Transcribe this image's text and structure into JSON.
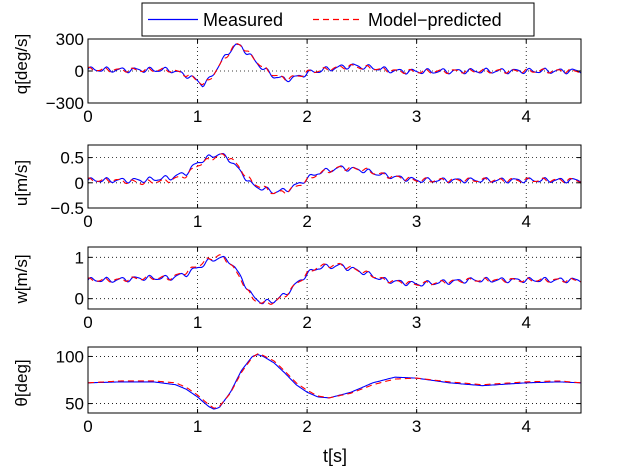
{
  "legend": {
    "entries": [
      {
        "label": "Measured",
        "color": "#0000ff",
        "dash": "solid"
      },
      {
        "label": "Model−predicted",
        "color": "#ff0000",
        "dash": "dashed"
      }
    ]
  },
  "xlabel": "t[s]",
  "chart_data": [
    {
      "type": "line",
      "ylabel": "q[deg/s]",
      "xlim": [
        0,
        4.5
      ],
      "ylim": [
        -300,
        300
      ],
      "xticks": [
        "0",
        "1",
        "2",
        "3",
        "4"
      ],
      "yticks": [
        "300",
        "0",
        "−300"
      ],
      "ytick_values": [
        300,
        0,
        -300
      ],
      "grid": true,
      "series": [
        {
          "name": "Measured",
          "x": [
            0,
            0.25,
            0.5,
            0.75,
            0.9,
            1.0,
            1.05,
            1.1,
            1.2,
            1.3,
            1.35,
            1.4,
            1.5,
            1.6,
            1.7,
            1.8,
            1.9,
            2.0,
            2.2,
            2.4,
            2.6,
            2.8,
            3.0,
            3.5,
            4.0,
            4.5
          ],
          "y": [
            15,
            10,
            10,
            10,
            -40,
            -90,
            -130,
            -90,
            60,
            200,
            240,
            230,
            120,
            20,
            -50,
            -80,
            -60,
            -20,
            20,
            50,
            30,
            0,
            -5,
            0,
            0,
            0
          ]
        },
        {
          "name": "Model−predicted",
          "x": [
            0,
            0.25,
            0.5,
            0.75,
            0.9,
            1.0,
            1.05,
            1.1,
            1.2,
            1.3,
            1.35,
            1.4,
            1.5,
            1.6,
            1.7,
            1.8,
            1.9,
            2.0,
            2.2,
            2.4,
            2.6,
            2.8,
            3.0,
            3.5,
            4.0,
            4.5
          ],
          "y": [
            15,
            10,
            10,
            10,
            -35,
            -85,
            -125,
            -95,
            50,
            190,
            250,
            240,
            130,
            30,
            -40,
            -70,
            -55,
            -15,
            20,
            45,
            25,
            0,
            -5,
            0,
            0,
            0
          ]
        }
      ]
    },
    {
      "type": "line",
      "ylabel": "u[m/s]",
      "xlim": [
        0,
        4.5
      ],
      "ylim": [
        -0.5,
        0.75
      ],
      "xticks": [
        "0",
        "1",
        "2",
        "3",
        "4"
      ],
      "yticks": [
        "0.5",
        "0",
        "−0.5"
      ],
      "ytick_values": [
        0.5,
        0,
        -0.5
      ],
      "grid": true,
      "series": [
        {
          "name": "Measured",
          "x": [
            0,
            0.25,
            0.5,
            0.75,
            0.9,
            1.0,
            1.1,
            1.2,
            1.3,
            1.4,
            1.5,
            1.6,
            1.7,
            1.8,
            1.9,
            2.0,
            2.1,
            2.3,
            2.5,
            2.7,
            3.0,
            3.5,
            4.0,
            4.5
          ],
          "y": [
            0.05,
            0.05,
            0.05,
            0.1,
            0.2,
            0.4,
            0.5,
            0.58,
            0.45,
            0.2,
            -0.05,
            -0.12,
            -0.18,
            -0.15,
            -0.05,
            0.08,
            0.2,
            0.3,
            0.25,
            0.15,
            0.05,
            0.05,
            0.05,
            0.05
          ]
        },
        {
          "name": "Model−predicted",
          "x": [
            0,
            0.25,
            0.5,
            0.75,
            0.9,
            1.0,
            1.1,
            1.2,
            1.3,
            1.4,
            1.5,
            1.6,
            1.7,
            1.8,
            1.9,
            2.0,
            2.1,
            2.3,
            2.5,
            2.7,
            3.0,
            3.5,
            4.0,
            4.5
          ],
          "y": [
            0.05,
            0.05,
            0.0,
            0.05,
            0.15,
            0.35,
            0.45,
            0.55,
            0.5,
            0.25,
            0.0,
            -0.1,
            -0.2,
            -0.18,
            -0.08,
            0.05,
            0.18,
            0.3,
            0.27,
            0.15,
            0.05,
            0.05,
            0.05,
            0.05
          ]
        }
      ]
    },
    {
      "type": "line",
      "ylabel": "w[m/s]",
      "xlim": [
        0,
        4.5
      ],
      "ylim": [
        -0.25,
        1.25
      ],
      "xticks": [
        "0",
        "1",
        "2",
        "3",
        "4"
      ],
      "yticks": [
        "1",
        "0"
      ],
      "ytick_values": [
        1,
        0
      ],
      "grid": true,
      "series": [
        {
          "name": "Measured",
          "x": [
            0,
            0.25,
            0.5,
            0.75,
            0.9,
            1.0,
            1.1,
            1.2,
            1.3,
            1.4,
            1.5,
            1.6,
            1.7,
            1.8,
            1.9,
            2.0,
            2.1,
            2.3,
            2.5,
            2.7,
            3.0,
            3.5,
            4.0,
            4.5
          ],
          "y": [
            0.45,
            0.45,
            0.5,
            0.5,
            0.6,
            0.75,
            0.9,
            1.0,
            0.9,
            0.5,
            0.05,
            -0.1,
            -0.05,
            0.1,
            0.35,
            0.6,
            0.75,
            0.8,
            0.65,
            0.45,
            0.35,
            0.45,
            0.45,
            0.45
          ]
        },
        {
          "name": "Model−predicted",
          "x": [
            0,
            0.25,
            0.5,
            0.75,
            0.9,
            1.0,
            1.1,
            1.2,
            1.3,
            1.4,
            1.5,
            1.6,
            1.7,
            1.8,
            1.9,
            2.0,
            2.1,
            2.3,
            2.5,
            2.7,
            3.0,
            3.5,
            4.0,
            4.5
          ],
          "y": [
            0.45,
            0.45,
            0.5,
            0.5,
            0.65,
            0.8,
            0.95,
            1.05,
            0.85,
            0.45,
            0.0,
            -0.12,
            -0.08,
            0.08,
            0.35,
            0.6,
            0.78,
            0.82,
            0.66,
            0.45,
            0.35,
            0.45,
            0.45,
            0.45
          ]
        }
      ]
    },
    {
      "type": "line",
      "ylabel": "θ[deg]",
      "xlim": [
        0,
        4.5
      ],
      "ylim": [
        40,
        110
      ],
      "xticks": [
        "0",
        "1",
        "2",
        "3",
        "4"
      ],
      "yticks": [
        "100",
        "50"
      ],
      "ytick_values": [
        100,
        50
      ],
      "grid": true,
      "series": [
        {
          "name": "Measured",
          "x": [
            0,
            0.3,
            0.6,
            0.8,
            0.9,
            1.0,
            1.1,
            1.15,
            1.2,
            1.3,
            1.4,
            1.5,
            1.55,
            1.6,
            1.7,
            1.8,
            1.9,
            2.0,
            2.1,
            2.2,
            2.4,
            2.6,
            2.8,
            3.0,
            3.3,
            3.6,
            4.0,
            4.3,
            4.5
          ],
          "y": [
            72,
            73,
            73,
            70,
            65,
            57,
            47,
            44,
            46,
            62,
            85,
            100,
            102,
            100,
            93,
            82,
            70,
            62,
            57,
            56,
            62,
            72,
            78,
            77,
            72,
            69,
            72,
            73,
            72
          ]
        },
        {
          "name": "Model−predicted",
          "x": [
            0,
            0.3,
            0.6,
            0.8,
            0.9,
            1.0,
            1.1,
            1.15,
            1.2,
            1.3,
            1.4,
            1.5,
            1.55,
            1.6,
            1.7,
            1.8,
            1.9,
            2.0,
            2.1,
            2.2,
            2.4,
            2.6,
            2.8,
            3.0,
            3.3,
            3.6,
            4.0,
            4.3,
            4.5
          ],
          "y": [
            72,
            74,
            74,
            72,
            67,
            59,
            49,
            45,
            47,
            61,
            83,
            99,
            103,
            101,
            95,
            84,
            72,
            64,
            58,
            56,
            61,
            70,
            76,
            77,
            73,
            70,
            73,
            74,
            72
          ]
        }
      ]
    }
  ]
}
